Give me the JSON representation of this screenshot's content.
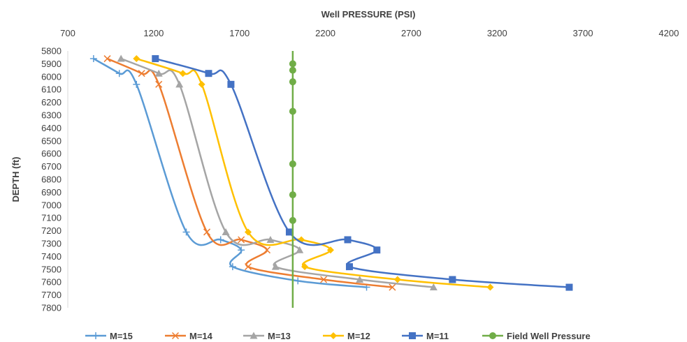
{
  "chart_data": {
    "type": "line",
    "xlabel": "Well PRESSURE (PSI)",
    "ylabel": "DEPTH (ft)",
    "xlim": [
      700,
      4200
    ],
    "ylim": [
      5800,
      7800
    ],
    "y_inverted": true,
    "x_axis_position": "top",
    "x_ticks": [
      700,
      1200,
      1700,
      2200,
      2700,
      3200,
      3700,
      4200
    ],
    "y_ticks": [
      5800,
      5900,
      6000,
      6100,
      6200,
      6300,
      6400,
      6500,
      6600,
      6700,
      6800,
      6900,
      7000,
      7100,
      7200,
      7300,
      7400,
      7500,
      7600,
      7700,
      7800
    ],
    "grid": false,
    "legend": "bottom",
    "series": [
      {
        "name": "M=15",
        "color": "#5B9BD5",
        "marker": "plus",
        "x": [
          850,
          1000,
          1100,
          1390,
          1590,
          1710,
          1660,
          2040,
          2440
        ],
        "y": [
          5860,
          5975,
          6060,
          7210,
          7270,
          7350,
          7480,
          7590,
          7640
        ]
      },
      {
        "name": "M=14",
        "color": "#ED7D31",
        "marker": "x",
        "x": [
          930,
          1130,
          1230,
          1510,
          1710,
          1860,
          1750,
          2190,
          2590
        ],
        "y": [
          5860,
          5975,
          6060,
          7210,
          7270,
          7350,
          7480,
          7580,
          7640
        ]
      },
      {
        "name": "M=13",
        "color": "#A5A5A5",
        "marker": "triangle",
        "x": [
          1010,
          1230,
          1350,
          1620,
          1880,
          2050,
          1910,
          2400,
          2830
        ],
        "y": [
          5860,
          5975,
          6060,
          7210,
          7270,
          7350,
          7480,
          7580,
          7640
        ]
      },
      {
        "name": "M=12",
        "color": "#FFC000",
        "marker": "diamond",
        "x": [
          1100,
          1370,
          1480,
          1750,
          2060,
          2230,
          2080,
          2620,
          3160
        ],
        "y": [
          5860,
          5975,
          6060,
          7210,
          7270,
          7350,
          7480,
          7580,
          7640
        ]
      },
      {
        "name": "M=11",
        "color": "#4472C4",
        "marker": "square",
        "x": [
          1210,
          1520,
          1650,
          1990,
          2330,
          2500,
          2340,
          2940,
          3620
        ],
        "y": [
          5860,
          5975,
          6060,
          7210,
          7270,
          7350,
          7480,
          7580,
          7640
        ]
      },
      {
        "name": "Field Well Pressure",
        "color": "#70AD47",
        "marker": "circle",
        "x": [
          2010,
          2010,
          2010,
          2010,
          2010,
          2010,
          2010
        ],
        "y": [
          5900,
          5950,
          6040,
          6270,
          6680,
          6920,
          7120
        ]
      }
    ]
  }
}
